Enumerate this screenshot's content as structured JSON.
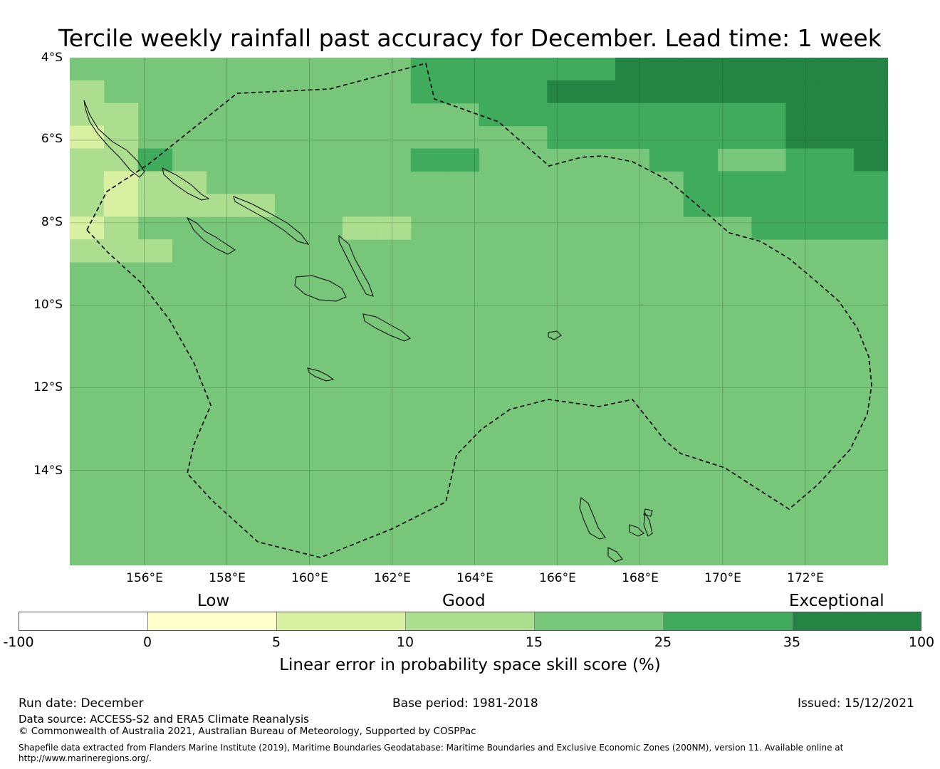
{
  "title": "Tercile weekly rainfall past accuracy for December. Lead time: 1 week",
  "map": {
    "lat_labels": [
      "4°S",
      "6°S",
      "8°S",
      "10°S",
      "12°S",
      "14°S"
    ],
    "lon_labels": [
      "156°E",
      "158°E",
      "160°E",
      "162°E",
      "164°E",
      "166°E",
      "168°E",
      "170°E",
      "172°E"
    ],
    "extent": {
      "lon_min": 154.2,
      "lon_max": 174.0,
      "lat_north": -4.0,
      "lat_south": -16.3
    },
    "grid": {
      "lon_start": 154.2,
      "lat_start": -4.0,
      "cell_deg_lon": 0.825,
      "cell_deg_lat": 0.55,
      "cols": 24,
      "rows": 22,
      "rows_data": [
        "444444444455555566666666",
        "344444444455556666666666",
        "334444444444555555555666",
        "234444444444445555555666",
        "335444444455444445544556",
        "323344444444444444555555",
        "323333444444444444555555",
        "234444443344444444445555",
        "333444444444444444444444",
        "444444444444444444444444",
        "444444444444444444444444",
        "444444444444444444444444",
        "444444444444444444444444",
        "444444444444444444444444",
        "444444444444444444444444",
        "444444444444444444444444",
        "444444444444444444444444",
        "444444444444444444444444",
        "444444444444444444444444",
        "444444444444444444444444",
        "444444444444444444444444",
        "444444444444444444444444"
      ]
    }
  },
  "legend": {
    "categories": [
      "Low",
      "Good",
      "Exceptional"
    ],
    "ticks": [
      "-100",
      "0",
      "5",
      "10",
      "15",
      "25",
      "35",
      "100"
    ],
    "colors": [
      "#ffffff",
      "#ffffcc",
      "#d9f0a3",
      "#addd8e",
      "#78c679",
      "#41ab5d",
      "#238443"
    ],
    "label": "Linear error in probability space skill score (%)"
  },
  "footer": {
    "run_date": "Run date: December",
    "base_period": "Base period: 1981-2018",
    "issued": "Issued: 15/12/2021",
    "data_source": "Data source: ACCESS-S2 and ERA5 Climate Reanalysis",
    "copyright": "© Commonwealth of Australia 2021, Australian Bureau of Meteorology, Supported by COSPPac",
    "shapefile_line1": "Shapefile data extracted from Flanders Marine Institute (2019), Maritime Boundaries Geodatabase: Maritime Boundaries and Exclusive Economic Zones (200NM), version 11. Available online at",
    "shapefile_line2": "http://www.marineregions.org/."
  }
}
